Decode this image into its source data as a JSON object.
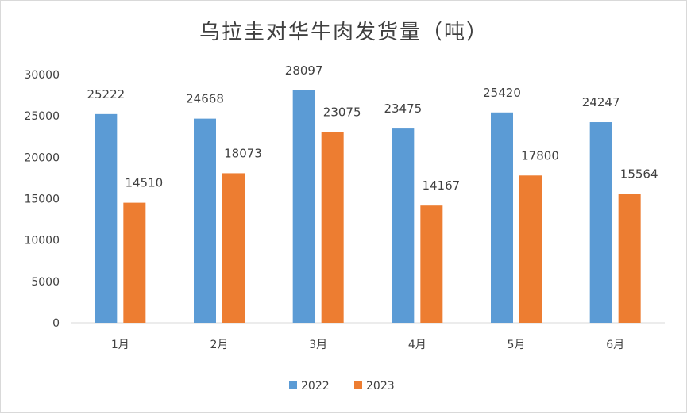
{
  "chart_data": {
    "type": "bar",
    "title": "乌拉圭对华牛肉发货量（吨）",
    "categories": [
      "1月",
      "2月",
      "3月",
      "4月",
      "5月",
      "6月"
    ],
    "series": [
      {
        "name": "2022",
        "color": "#5b9bd5",
        "values": [
          25222,
          24668,
          28097,
          23475,
          25420,
          24247
        ]
      },
      {
        "name": "2023",
        "color": "#ed7d31",
        "values": [
          14510,
          18073,
          23075,
          14167,
          17800,
          15564
        ]
      }
    ],
    "ylim": [
      0,
      30000
    ],
    "yticks": [
      0,
      5000,
      10000,
      15000,
      20000,
      25000,
      30000
    ],
    "grid": false,
    "data_labels": true,
    "legend_position": "bottom"
  }
}
